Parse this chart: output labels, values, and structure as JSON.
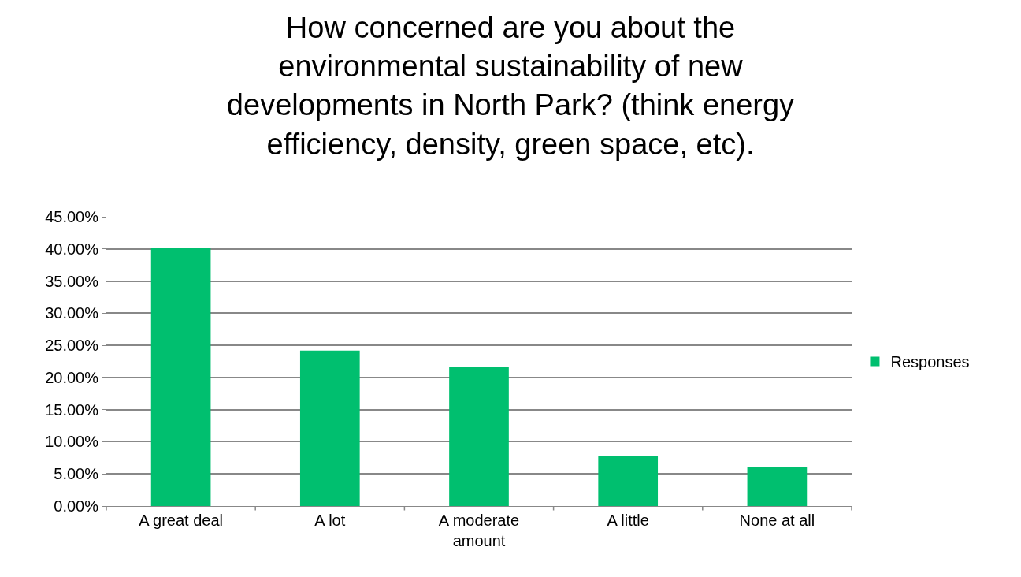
{
  "chart_data": {
    "type": "bar",
    "title": "How concerned are you about the environmental sustainability of new developments in North Park? (think energy efficiency, density, green space, etc).",
    "categories": [
      "A great deal",
      "A lot",
      "A moderate amount",
      "A little",
      "None at all"
    ],
    "series": [
      {
        "name": "Responses",
        "color": "#00bf6f",
        "values": [
          40.2,
          24.2,
          21.6,
          7.8,
          6.0
        ]
      }
    ],
    "ylim": [
      0,
      45
    ],
    "yticks": [
      {
        "value": 0,
        "label": "0.00%"
      },
      {
        "value": 5,
        "label": "5.00%"
      },
      {
        "value": 10,
        "label": "10.00%"
      },
      {
        "value": 15,
        "label": "15.00%"
      },
      {
        "value": 20,
        "label": "20.00%"
      },
      {
        "value": 25,
        "label": "25.00%"
      },
      {
        "value": 30,
        "label": "30.00%"
      },
      {
        "value": 35,
        "label": "35.00%"
      },
      {
        "value": 40,
        "label": "40.00%"
      },
      {
        "value": 45,
        "label": "45.00%"
      }
    ],
    "grid": "y",
    "legend": "right"
  }
}
